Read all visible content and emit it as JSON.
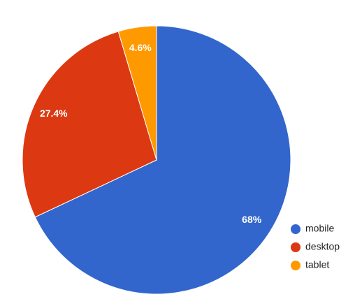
{
  "chart_data": {
    "type": "pie",
    "categories": [
      "mobile",
      "desktop",
      "tablet"
    ],
    "values": [
      68,
      27.4,
      4.6
    ],
    "value_labels": [
      "68%",
      "27.4%",
      "4.6%"
    ],
    "colors": [
      "#3366cc",
      "#dc3912",
      "#ff9900"
    ],
    "legend": "right"
  }
}
